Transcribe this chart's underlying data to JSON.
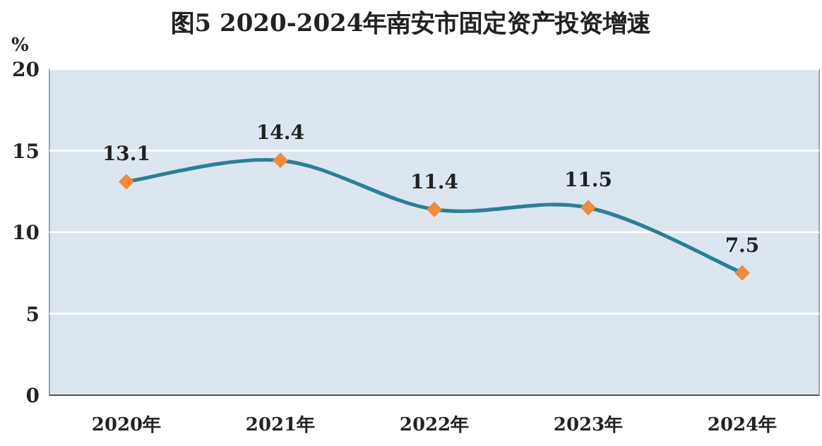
{
  "chart_data": {
    "type": "line",
    "title": "图5  2020-2024年南安市固定资产投资增速",
    "ylabel": "%",
    "categories": [
      "2020年",
      "2021年",
      "2022年",
      "2023年",
      "2024年"
    ],
    "series": [
      {
        "color": "#2b7f96",
        "colors": [
          "#f08a3c",
          "#f08a3c",
          "#f08a3c",
          "#f08a3c",
          "#f08a3c"
        ],
        "values": [
          13.1,
          14.4,
          11.4,
          11.5,
          7.5
        ]
      }
    ],
    "ylim": [
      0,
      20
    ],
    "yticks": [
      0,
      5,
      10,
      15,
      20
    ],
    "grid": "y",
    "marker": "diamond",
    "data_labels": true
  }
}
